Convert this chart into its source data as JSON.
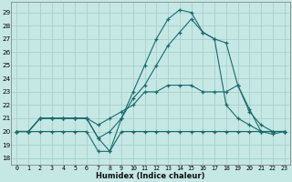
{
  "xlabel": "Humidex (Indice chaleur)",
  "bg_color": "#c5e8e5",
  "grid_color": "#a8d0cc",
  "line_color": "#1a6b6b",
  "xlim": [
    -0.5,
    23.5
  ],
  "ylim": [
    17.5,
    29.8
  ],
  "yticks": [
    18,
    19,
    20,
    21,
    22,
    23,
    24,
    25,
    26,
    27,
    28,
    29
  ],
  "xticks": [
    0,
    1,
    2,
    3,
    4,
    5,
    6,
    7,
    8,
    9,
    10,
    11,
    12,
    13,
    14,
    15,
    16,
    17,
    18,
    19,
    20,
    21,
    22,
    23
  ],
  "series": [
    [
      20,
      20,
      20,
      20,
      20,
      20,
      20,
      18.5,
      18.5,
      20,
      20,
      20,
      20,
      20,
      20,
      20,
      20,
      20,
      20,
      20,
      20,
      20,
      20,
      20
    ],
    [
      20,
      20,
      21,
      21,
      21,
      21,
      21,
      19.5,
      18.5,
      21,
      23,
      25,
      27,
      28.5,
      29.2,
      29,
      27.5,
      27,
      26.7,
      23.5,
      21.7,
      20,
      19.8,
      20
    ],
    [
      20,
      20,
      21,
      21,
      21,
      21,
      21,
      19.5,
      20,
      21,
      22.5,
      23.5,
      25,
      26.5,
      27.5,
      28.5,
      27.5,
      27,
      22,
      21,
      20.5,
      20,
      20,
      20
    ],
    [
      20,
      20,
      21,
      21,
      21,
      21,
      21,
      20.5,
      21,
      21.5,
      22,
      23,
      23,
      23.5,
      23.5,
      23.5,
      23,
      23,
      23,
      23.5,
      21.5,
      20.5,
      20,
      20
    ]
  ]
}
